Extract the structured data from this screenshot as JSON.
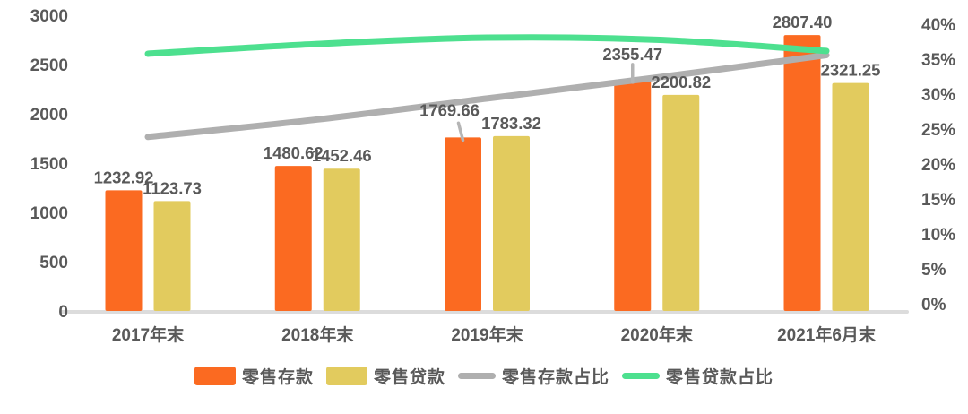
{
  "chart_data": {
    "type": "bar+line",
    "title": "",
    "categories": [
      "2017年末",
      "2018年末",
      "2019年末",
      "2020年末",
      "2021年6月末"
    ],
    "series": [
      {
        "name": "零售存款",
        "type": "bar",
        "axis": "left",
        "color": "#FB6A21",
        "values": [
          1232.92,
          1480.62,
          1769.66,
          2355.47,
          2807.4
        ]
      },
      {
        "name": "零售贷款",
        "type": "bar",
        "axis": "left",
        "color": "#E2CB5E",
        "values": [
          1123.73,
          1452.46,
          1783.32,
          2200.82,
          2321.25
        ]
      },
      {
        "name": "零售存款占比",
        "type": "line",
        "axis": "right",
        "color": "#AFAFAF",
        "values": [
          24.0,
          26.5,
          29.5,
          32.5,
          35.7
        ]
      },
      {
        "name": "零售贷款占比",
        "type": "line",
        "axis": "right",
        "color": "#4DE08F",
        "values": [
          35.9,
          37.3,
          38.2,
          37.9,
          36.3
        ]
      }
    ],
    "left_axis": {
      "min": 0,
      "max": 3000,
      "step": 500,
      "ticks": [
        "3000",
        "2500",
        "2000",
        "1500",
        "1000",
        "500",
        "0"
      ]
    },
    "right_axis": {
      "min": 0,
      "max": 40,
      "step": 5,
      "ticks": [
        "40%",
        "35%",
        "30%",
        "25%",
        "20%",
        "15%",
        "10%",
        "5%",
        "0%"
      ]
    },
    "grid": false,
    "legend_position": "bottom",
    "colors": {
      "text": "#595959",
      "axis_line": "#DCDCDC",
      "leader_line": "#B5B5B5",
      "background": "#FFFFFF"
    }
  }
}
